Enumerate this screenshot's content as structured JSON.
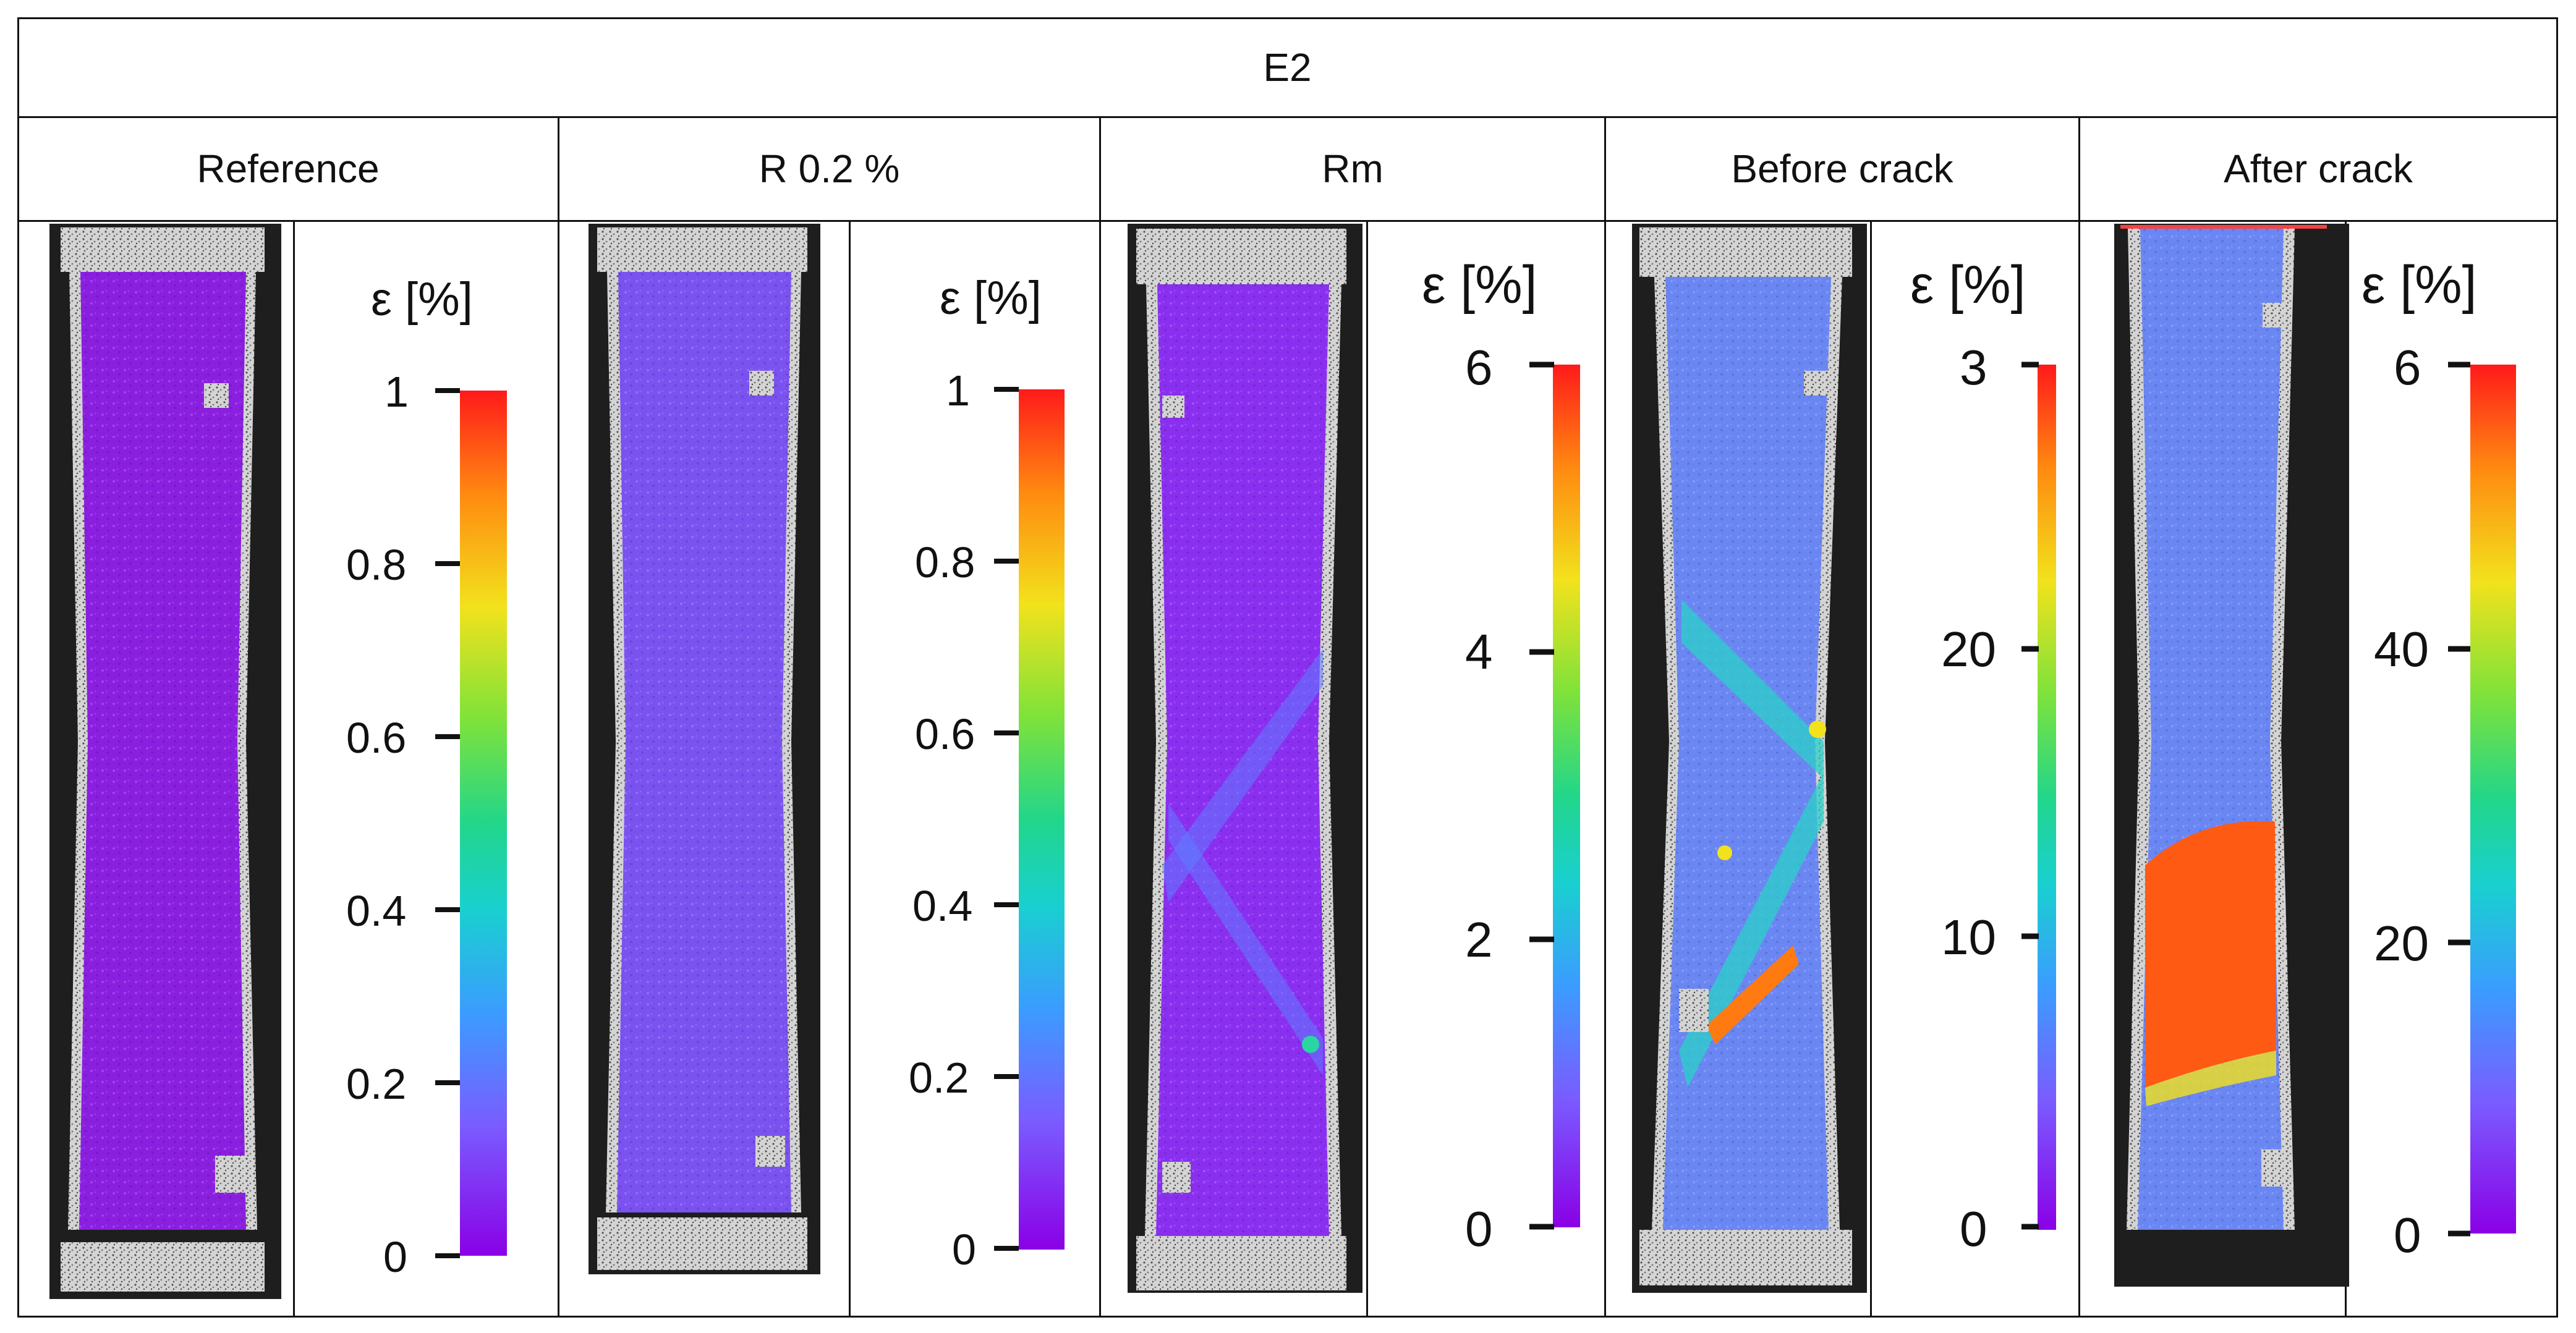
{
  "table": {
    "title": "E2",
    "columns": [
      {
        "label": "Reference"
      },
      {
        "label": "R 0.2 %"
      },
      {
        "label": "Rm"
      },
      {
        "label": "Before crack"
      },
      {
        "label": "After crack"
      }
    ]
  },
  "colorbars": [
    {
      "label": "ε [%]",
      "ticks": [
        "1",
        "0.8",
        "0.6",
        "0.4",
        "0.2",
        "0"
      ]
    },
    {
      "label": "ε [%]",
      "ticks": [
        "1",
        "0.8",
        "0.6",
        "0.4",
        "0.2",
        "0"
      ]
    },
    {
      "label": "ε [%]",
      "ticks": [
        "6",
        "4",
        "2",
        "0"
      ]
    },
    {
      "label": "ε [%]",
      "ticks": [
        "3",
        "20",
        "10",
        "0"
      ]
    },
    {
      "label": "ε [%]",
      "ticks": [
        "6",
        "40",
        "20",
        "0"
      ]
    }
  ],
  "colors": {
    "grid": "#111111",
    "strain_low": "#8a2be2",
    "strain_mid": "#22d68a",
    "strain_high": "#ff1a1a",
    "specimen_frame": "#2a2a2a",
    "speckle": "#cfcfcf"
  }
}
